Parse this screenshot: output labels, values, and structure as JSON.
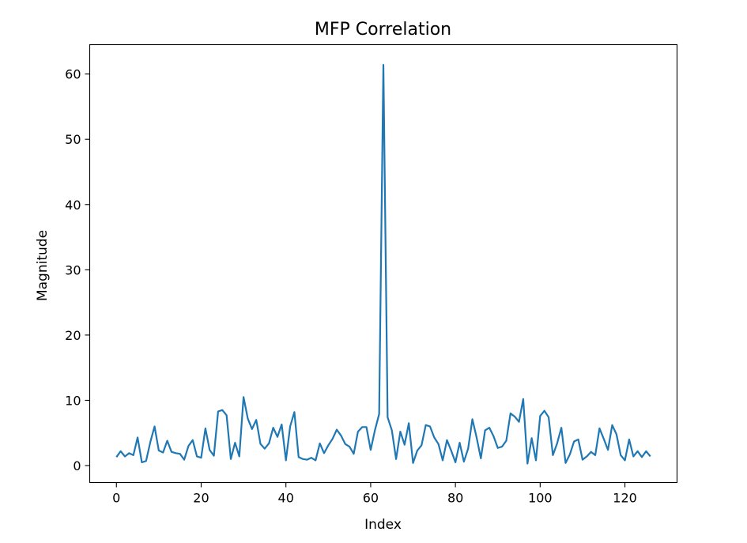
{
  "chart_data": {
    "type": "line",
    "title": "MFP Correlation",
    "xlabel": "Index",
    "ylabel": "Magnitude",
    "xlim": [
      -6.3,
      132.3
    ],
    "ylim": [
      -2.6,
      64.5
    ],
    "xticks": [
      0,
      20,
      40,
      60,
      80,
      100,
      120
    ],
    "yticks": [
      0,
      10,
      20,
      30,
      40,
      50,
      60
    ],
    "grid": false,
    "legend": "none",
    "series": [
      {
        "color": "#1f77b4",
        "x": [
          0,
          1,
          2,
          3,
          4,
          5,
          6,
          7,
          8,
          9,
          10,
          11,
          12,
          13,
          14,
          15,
          16,
          17,
          18,
          19,
          20,
          21,
          22,
          23,
          24,
          25,
          26,
          27,
          28,
          29,
          30,
          31,
          32,
          33,
          34,
          35,
          36,
          37,
          38,
          39,
          40,
          41,
          42,
          43,
          44,
          45,
          46,
          47,
          48,
          49,
          50,
          51,
          52,
          53,
          54,
          55,
          56,
          57,
          58,
          59,
          60,
          61,
          62,
          63,
          64,
          65,
          66,
          67,
          68,
          69,
          70,
          71,
          72,
          73,
          74,
          75,
          76,
          77,
          78,
          79,
          80,
          81,
          82,
          83,
          84,
          85,
          86,
          87,
          88,
          89,
          90,
          91,
          92,
          93,
          94,
          95,
          96,
          97,
          98,
          99,
          100,
          101,
          102,
          103,
          104,
          105,
          106,
          107,
          108,
          109,
          110,
          111,
          112,
          113,
          114,
          115,
          116,
          117,
          118,
          119,
          120,
          121,
          122,
          123,
          124,
          125,
          126
        ],
        "values": [
          1.3,
          2.2,
          1.4,
          1.9,
          1.6,
          4.3,
          0.5,
          0.7,
          3.6,
          6.0,
          2.3,
          2.0,
          3.8,
          2.1,
          1.9,
          1.8,
          0.9,
          3.0,
          3.9,
          1.4,
          1.2,
          5.7,
          2.4,
          1.5,
          8.3,
          8.5,
          7.7,
          1.0,
          3.5,
          1.4,
          10.5,
          7.2,
          5.6,
          7.0,
          3.3,
          2.6,
          3.4,
          5.8,
          4.4,
          6.3,
          0.8,
          6.0,
          8.2,
          1.3,
          1.0,
          0.9,
          1.2,
          0.8,
          3.4,
          1.9,
          3.1,
          4.1,
          5.5,
          4.6,
          3.3,
          2.9,
          1.8,
          5.2,
          5.9,
          5.9,
          2.4,
          5.4,
          7.9,
          61.4,
          7.4,
          5.4,
          1.0,
          5.2,
          3.2,
          6.5,
          0.4,
          2.3,
          3.1,
          6.2,
          6.0,
          4.3,
          3.3,
          0.8,
          3.9,
          2.3,
          0.5,
          3.5,
          0.6,
          2.6,
          7.1,
          4.3,
          1.1,
          5.4,
          5.8,
          4.5,
          2.7,
          2.9,
          3.8,
          8.0,
          7.5,
          6.7,
          10.2,
          0.3,
          4.2,
          0.8,
          7.6,
          8.4,
          7.4,
          1.6,
          3.4,
          5.8,
          0.4,
          1.7,
          3.7,
          4.0,
          0.9,
          1.4,
          2.1,
          1.6,
          5.7,
          4.1,
          2.4,
          6.2,
          4.8,
          1.6,
          0.8,
          4.0,
          1.4,
          2.2,
          1.3,
          2.2,
          1.4
        ]
      }
    ]
  }
}
